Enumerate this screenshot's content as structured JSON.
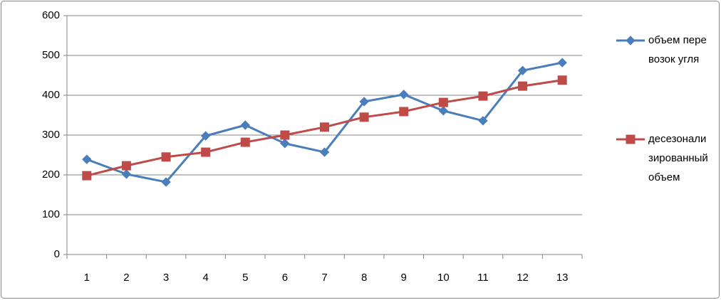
{
  "chart_data": {
    "type": "line",
    "categories": [
      "1",
      "2",
      "3",
      "4",
      "5",
      "6",
      "7",
      "8",
      "9",
      "10",
      "11",
      "12",
      "13"
    ],
    "series": [
      {
        "name": "объем перевозок угля",
        "color": "#4a7ebb",
        "marker": "diamond",
        "values": [
          239,
          202,
          182,
          298,
          325,
          279,
          257,
          384,
          402,
          361,
          336,
          462,
          482
        ]
      },
      {
        "name": "десезонализированный объем",
        "color": "#be4b48",
        "marker": "square",
        "values": [
          198,
          223,
          245,
          257,
          282,
          300,
          320,
          345,
          359,
          382,
          398,
          423,
          438
        ]
      }
    ],
    "ylim": [
      0,
      600
    ],
    "yticks": [
      0,
      100,
      200,
      300,
      400,
      500,
      600
    ],
    "grid": true
  }
}
